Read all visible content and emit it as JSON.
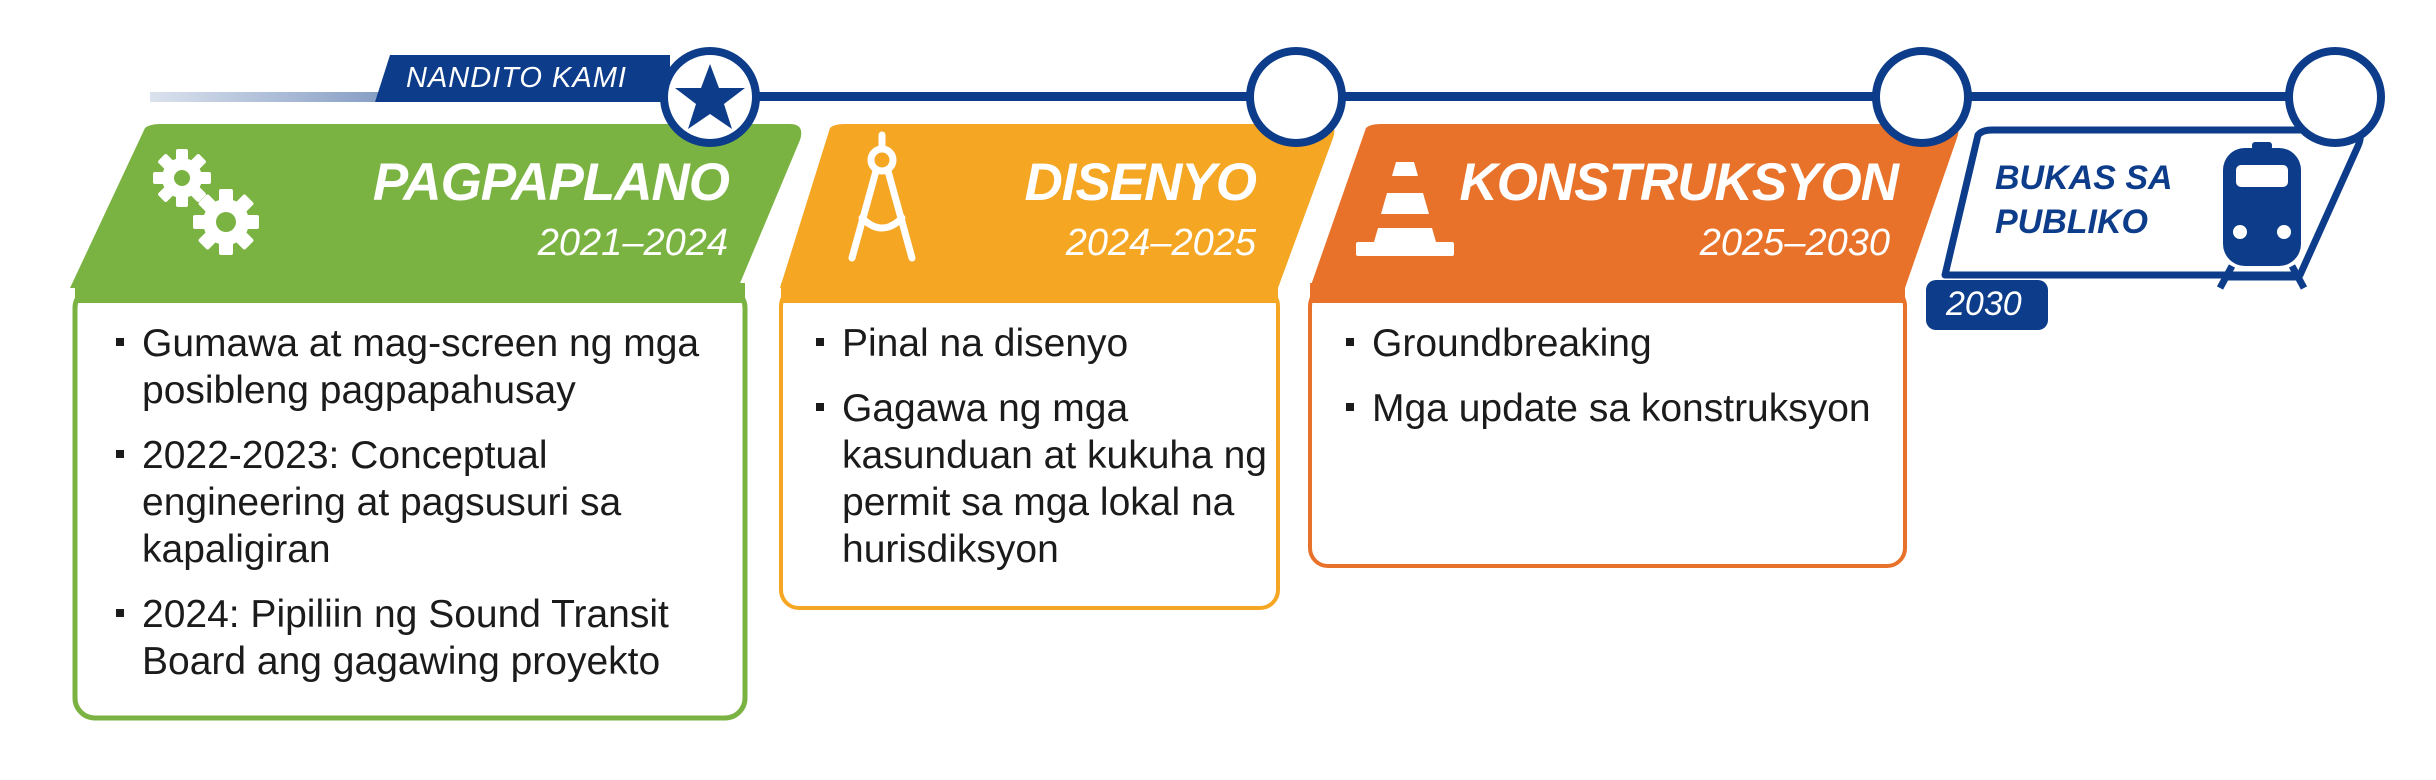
{
  "here_marker": {
    "label": "NANDITO KAMI",
    "icon": "star-icon"
  },
  "colors": {
    "track": "#0d3d8a",
    "planning": "#7ab342",
    "design": "#f5a623",
    "construction": "#e8722a",
    "open": "#0d3d8a"
  },
  "phases": [
    {
      "title": "PAGPAPLANO",
      "dates": "2021–2024",
      "icon": "gears-icon",
      "bullets": [
        "Gumawa at mag-screen ng mga posibleng pagpapahusay",
        "2022-2023:  Conceptual engineering at pagsusuri sa kapaligiran",
        "2024: Pipiliin ng Sound Transit Board ang gagawing proyekto"
      ]
    },
    {
      "title": "DISENYO",
      "dates": "2024–2025",
      "icon": "compass-icon",
      "bullets": [
        "Pinal na disenyo",
        "Gagawa ng mga kasunduan at kukuha ng permit sa mga lokal na hurisdiksyon"
      ]
    },
    {
      "title": "KONSTRUKSYON",
      "dates": "2025–2030",
      "icon": "traffic-cone-icon",
      "bullets": [
        "Groundbreaking",
        "Mga update sa konstruksyon"
      ]
    }
  ],
  "open": {
    "label_line1": "BUKAS SA",
    "label_line2": "PUBLIKO",
    "year": "2030",
    "icon": "train-icon"
  }
}
